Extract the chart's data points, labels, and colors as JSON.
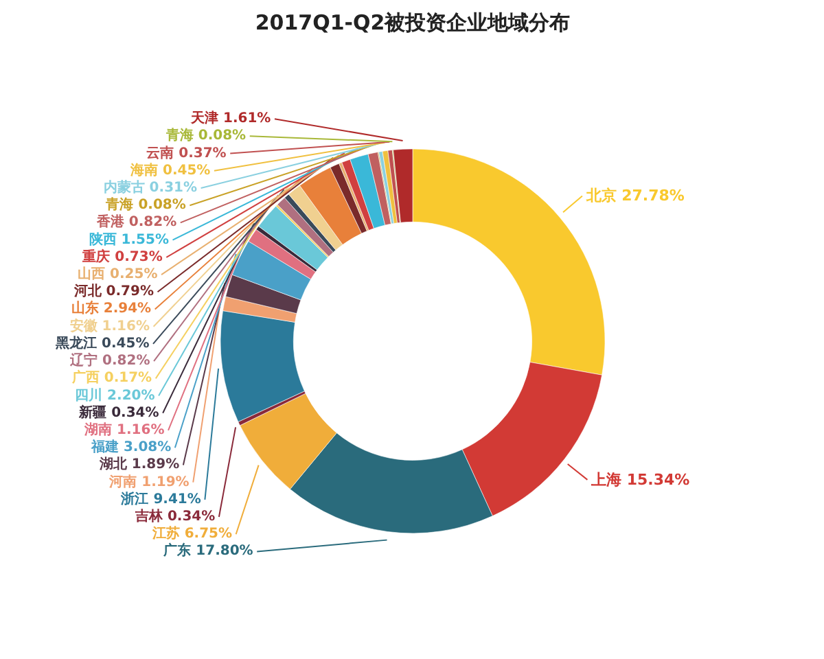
{
  "chart_data": {
    "type": "donut",
    "title": "2017Q1-Q2被投资企业地域分布",
    "value_labels": [
      "27.78%",
      "15.34%",
      "17.80%",
      "6.75%",
      "0.34%",
      "9.41%",
      "1.19%",
      "1.89%",
      "3.08%",
      "1.16%",
      "0.34%",
      "2.20%",
      "0.17%",
      "0.82%",
      "0.45%",
      "1.16%",
      "2.94%",
      "0.79%",
      "0.25%",
      "0.73%",
      "1.55%",
      "0.82%",
      "0.08%",
      "0.31%",
      "0.45%",
      "0.37%",
      "0.08%",
      "1.61%"
    ],
    "categories": [
      "北京",
      "上海",
      "广东",
      "江苏",
      "吉林",
      "浙江",
      "河南",
      "湖北",
      "福建",
      "湖南",
      "新疆",
      "四川",
      "广西",
      "辽宁",
      "黑龙江",
      "安徽",
      "山东",
      "河北",
      "山西",
      "重庆",
      "陕西",
      "香港",
      "青海",
      "内蒙古",
      "海南",
      "云南",
      "青海",
      "天津"
    ],
    "values": [
      27.78,
      15.34,
      17.8,
      6.75,
      0.34,
      9.41,
      1.19,
      1.89,
      3.08,
      1.16,
      0.34,
      2.2,
      0.17,
      0.82,
      0.45,
      1.16,
      2.94,
      0.79,
      0.25,
      0.73,
      1.55,
      0.82,
      0.08,
      0.31,
      0.45,
      0.37,
      0.08,
      1.61
    ],
    "colors": [
      "#f9c92e",
      "#d23a35",
      "#2a6b7c",
      "#f0ad3a",
      "#8a2a3a",
      "#2b7a9a",
      "#f0a070",
      "#5a3a4a",
      "#4aa0c8",
      "#e07080",
      "#3a2a3a",
      "#6ac8d8",
      "#f5d060",
      "#b07080",
      "#3a4a5a",
      "#f0d090",
      "#e8803a",
      "#7a2a2a",
      "#e8b070",
      "#d04040",
      "#3ab8d8",
      "#c06060",
      "#c9a227",
      "#8ad0e0",
      "#f0c040",
      "#c05050",
      "#a8b838",
      "#b02a2a"
    ]
  }
}
